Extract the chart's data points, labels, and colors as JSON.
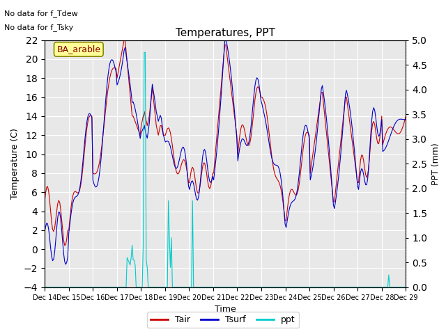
{
  "title": "Temperatures, PPT",
  "xlabel": "Time",
  "ylabel_left": "Temperature (C)",
  "ylabel_right": "PPT (mm)",
  "note1": "No data for f_Tdew",
  "note2": "No data for f_Tsky",
  "label_box": "BA_arable",
  "ylim_left": [
    -4,
    22
  ],
  "ylim_right": [
    0.0,
    5.0
  ],
  "yticks_left": [
    -4,
    -2,
    0,
    2,
    4,
    6,
    8,
    10,
    12,
    14,
    16,
    18,
    20,
    22
  ],
  "yticks_right": [
    0.0,
    0.5,
    1.0,
    1.5,
    2.0,
    2.5,
    3.0,
    3.5,
    4.0,
    4.5,
    5.0
  ],
  "xtick_labels": [
    "Dec 14",
    "Dec 15",
    "Dec 16",
    "Dec 17",
    "Dec 18",
    "Dec 19",
    "Dec 20",
    "Dec 21",
    "Dec 22",
    "Dec 23",
    "Dec 24",
    "Dec 25",
    "Dec 26",
    "Dec 27",
    "Dec 28",
    "Dec 29"
  ],
  "bg_color": "#e8e8e8",
  "line_tair_color": "#cc0000",
  "line_tsurf_color": "#0000cc",
  "line_ppt_color": "#00cccc",
  "legend_entries": [
    "Tair",
    "Tsurf",
    "ppt"
  ],
  "n_days": 15,
  "n_per_day": 24
}
